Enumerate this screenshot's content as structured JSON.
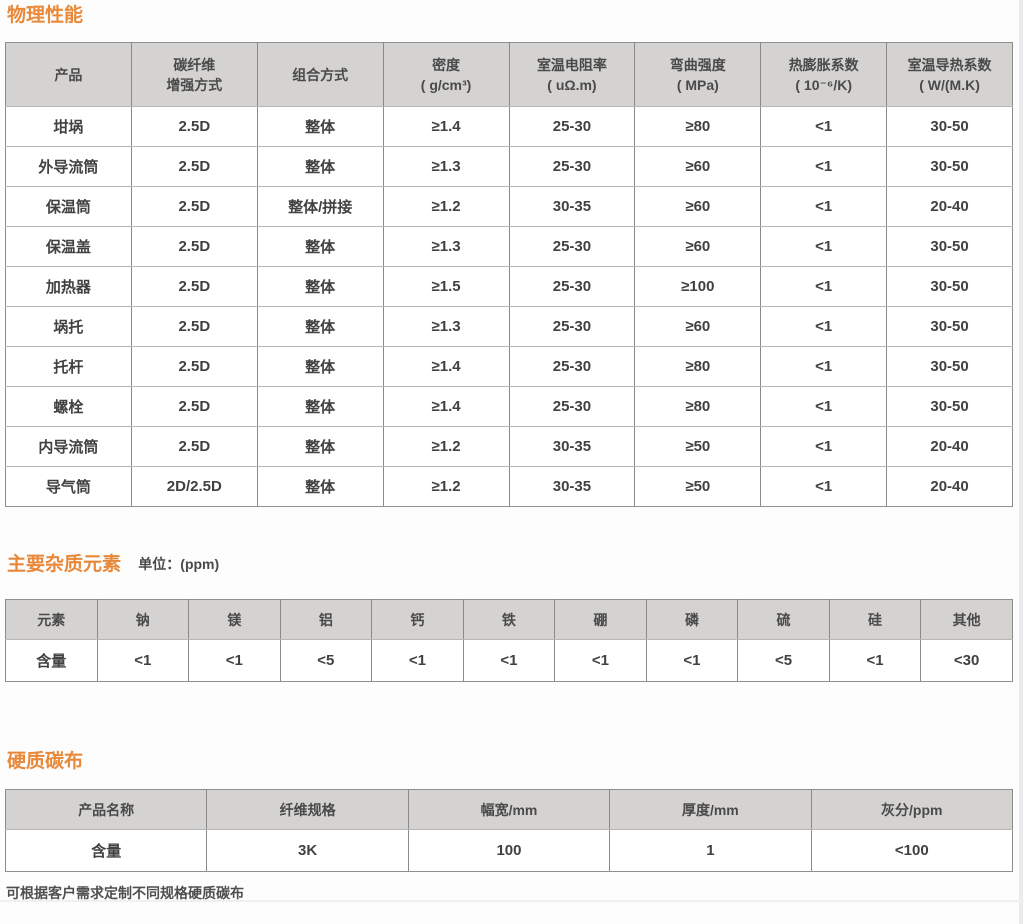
{
  "colors": {
    "accent_orange": "#e8893a",
    "table_header_bg": "#d4d3d1",
    "table_border_dark": "#8a8a8a",
    "table_border_light": "#b7b6b4",
    "text": "#4a4a4a"
  },
  "physical": {
    "title": "物理性能",
    "headers": [
      "产品",
      "碳纤维\n增强方式",
      "组合方式",
      "密度\n( g/cm³)",
      "室温电阻率\n( uΩ.m)",
      "弯曲强度\n( MPa)",
      "热膨胀系数\n( 10⁻⁶/K)",
      "室温导热系数\n( W/(M.K)"
    ],
    "rows": [
      [
        "坩埚",
        "2.5D",
        "整体",
        "≥1.4",
        "25-30",
        "≥80",
        "<1",
        "30-50"
      ],
      [
        "外导流筒",
        "2.5D",
        "整体",
        "≥1.3",
        "25-30",
        "≥60",
        "<1",
        "30-50"
      ],
      [
        "保温筒",
        "2.5D",
        "整体/拼接",
        "≥1.2",
        "30-35",
        "≥60",
        "<1",
        "20-40"
      ],
      [
        "保温盖",
        "2.5D",
        "整体",
        "≥1.3",
        "25-30",
        "≥60",
        "<1",
        "30-50"
      ],
      [
        "加热器",
        "2.5D",
        "整体",
        "≥1.5",
        "25-30",
        "≥100",
        "<1",
        "30-50"
      ],
      [
        "埚托",
        "2.5D",
        "整体",
        "≥1.3",
        "25-30",
        "≥60",
        "<1",
        "30-50"
      ],
      [
        "托杆",
        "2.5D",
        "整体",
        "≥1.4",
        "25-30",
        "≥80",
        "<1",
        "30-50"
      ],
      [
        "螺栓",
        "2.5D",
        "整体",
        "≥1.4",
        "25-30",
        "≥80",
        "<1",
        "30-50"
      ],
      [
        "内导流筒",
        "2.5D",
        "整体",
        "≥1.2",
        "30-35",
        "≥50",
        "<1",
        "20-40"
      ],
      [
        "导气筒",
        "2D/2.5D",
        "整体",
        "≥1.2",
        "30-35",
        "≥50",
        "<1",
        "20-40"
      ]
    ]
  },
  "impurities": {
    "title": "主要杂质元素",
    "unit": "单位：(ppm)",
    "headers": [
      "元素",
      "钠",
      "镁",
      "铝",
      "钙",
      "铁",
      "硼",
      "磷",
      "硫",
      "硅",
      "其他"
    ],
    "values": [
      "含量",
      "<1",
      "<1",
      "<5",
      "<1",
      "<1",
      "<1",
      "<1",
      "<5",
      "<1",
      "<30"
    ]
  },
  "carbon_cloth": {
    "title": "硬质碳布",
    "headers": [
      "产品名称",
      "纤维规格",
      "幅宽/mm",
      "厚度/mm",
      "灰分/ppm"
    ],
    "values": [
      "含量",
      "3K",
      "100",
      "1",
      "<100"
    ],
    "note": "可根据客户需求定制不同规格硬质碳布"
  }
}
